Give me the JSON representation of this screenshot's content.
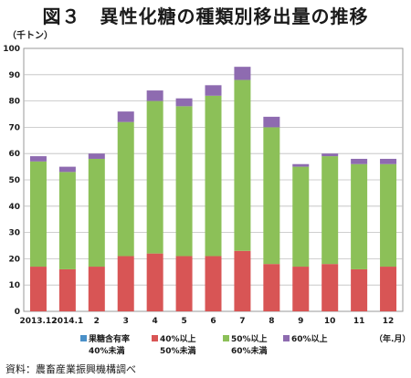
{
  "title": "図３　異性化糖の種類別移出量の推移",
  "unit_label": "（千トン）",
  "source": "資料：農畜産業振興機構調べ",
  "x_unit_label": "（年.月）",
  "colors": {
    "fructose_under_40": "#4a90c8",
    "pct40_to_50": "#d85555",
    "pct50_to_60": "#8cc058",
    "pct60_over": "#8e6bb0"
  },
  "chart_data": {
    "type": "bar",
    "stacked": true,
    "categories": [
      "2013.12",
      "2014.1",
      "2",
      "3",
      "4",
      "5",
      "6",
      "7",
      "8",
      "9",
      "10",
      "11",
      "12"
    ],
    "series": [
      {
        "name": "果糖含有率40%未満",
        "color": "#4a90c8",
        "values": [
          0,
          0,
          0,
          0,
          0,
          0,
          0,
          0,
          0,
          0,
          0,
          0,
          0
        ]
      },
      {
        "name": "40%以上50%未満",
        "color": "#d85555",
        "values": [
          17,
          16,
          17,
          21,
          22,
          21,
          21,
          23,
          18,
          17,
          18,
          16,
          17
        ]
      },
      {
        "name": "50%以上60%未満",
        "color": "#8cc058",
        "values": [
          40,
          37,
          41,
          51,
          58,
          57,
          61,
          65,
          52,
          38,
          41,
          40,
          39
        ]
      },
      {
        "name": "60%以上",
        "color": "#8e6bb0",
        "values": [
          2,
          2,
          2,
          4,
          4,
          3,
          4,
          5,
          4,
          1,
          1,
          2,
          2
        ]
      }
    ],
    "ylim": [
      0,
      100
    ],
    "yticks": [
      0,
      10,
      20,
      30,
      40,
      50,
      60,
      70,
      80,
      90,
      100
    ],
    "grid": true,
    "legend_position": "bottom",
    "legend": [
      {
        "series_index": 0,
        "line1": "果糖含有率",
        "line2": "40%未満"
      },
      {
        "series_index": 1,
        "line1": "40%以上",
        "line2": "50%未満"
      },
      {
        "series_index": 2,
        "line1": "50%以上",
        "line2": "60%未満"
      },
      {
        "series_index": 3,
        "line1": "60%以上",
        "line2": ""
      }
    ]
  }
}
